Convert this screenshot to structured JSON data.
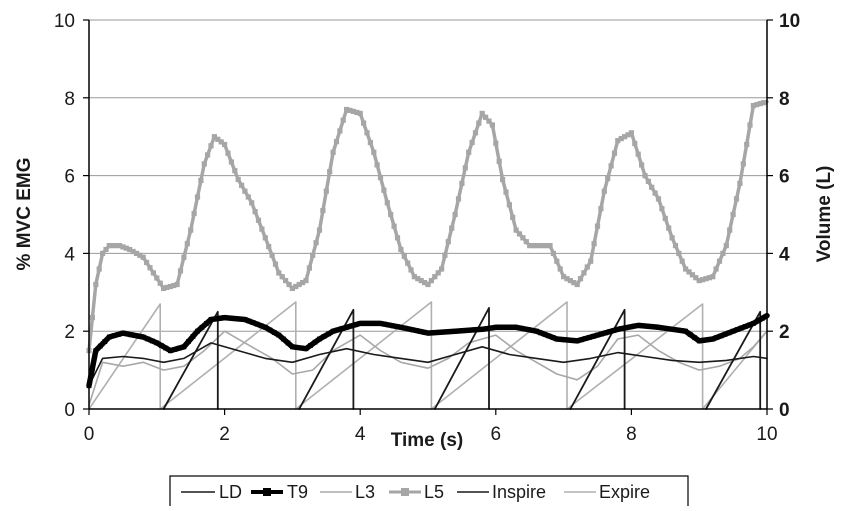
{
  "chart_data": {
    "type": "line",
    "title": "",
    "xlabel": "Time (s)",
    "ylabel_left": "% MVC EMG",
    "ylabel_right": "Volume (L)",
    "xlim": [
      0,
      10
    ],
    "ylim_left": [
      0,
      10
    ],
    "ylim_right": [
      0,
      10
    ],
    "x_ticks": [
      "0",
      "2",
      "4",
      "6",
      "8",
      "10"
    ],
    "y_ticks_left": [
      "0",
      "2",
      "4",
      "6",
      "8",
      "10"
    ],
    "y_ticks_right": [
      "0",
      "2",
      "4",
      "6",
      "8",
      "10"
    ],
    "grid": "horizontal",
    "legend_position": "bottom",
    "legend": [
      "LD",
      "T9",
      "L3",
      "L5",
      "Inspire",
      "Expire"
    ],
    "series": [
      {
        "name": "LD",
        "axis": "left",
        "color": "#1a1a1a",
        "x": [
          0,
          0.2,
          0.5,
          0.8,
          1.1,
          1.4,
          1.8,
          2.2,
          2.6,
          3.0,
          3.4,
          3.8,
          4.2,
          4.6,
          5.0,
          5.4,
          5.8,
          6.2,
          6.6,
          7.0,
          7.4,
          7.8,
          8.2,
          8.6,
          9.0,
          9.4,
          9.8,
          10.0
        ],
        "values": [
          0.6,
          1.3,
          1.35,
          1.3,
          1.2,
          1.3,
          1.7,
          1.5,
          1.3,
          1.2,
          1.4,
          1.55,
          1.4,
          1.3,
          1.2,
          1.4,
          1.6,
          1.4,
          1.3,
          1.2,
          1.3,
          1.45,
          1.35,
          1.25,
          1.2,
          1.25,
          1.35,
          1.3
        ]
      },
      {
        "name": "T9",
        "axis": "left",
        "color": "#000000",
        "x": [
          0,
          0.1,
          0.3,
          0.5,
          0.8,
          1.0,
          1.2,
          1.4,
          1.6,
          1.8,
          2.0,
          2.3,
          2.6,
          2.8,
          3.0,
          3.2,
          3.4,
          3.6,
          3.8,
          4.0,
          4.3,
          4.6,
          5.0,
          5.4,
          5.8,
          6.0,
          6.3,
          6.6,
          6.9,
          7.2,
          7.5,
          7.8,
          8.1,
          8.4,
          8.8,
          9.0,
          9.2,
          9.5,
          9.8,
          10.0
        ],
        "values": [
          0.6,
          1.5,
          1.85,
          1.95,
          1.85,
          1.7,
          1.5,
          1.6,
          2.0,
          2.3,
          2.35,
          2.3,
          2.1,
          1.9,
          1.6,
          1.55,
          1.8,
          2.0,
          2.1,
          2.2,
          2.2,
          2.1,
          1.95,
          2.0,
          2.05,
          2.1,
          2.1,
          2.0,
          1.8,
          1.75,
          1.9,
          2.05,
          2.15,
          2.1,
          2.0,
          1.75,
          1.8,
          2.0,
          2.2,
          2.4
        ]
      },
      {
        "name": "L3",
        "axis": "left",
        "color": "#a8a8a8",
        "x": [
          0,
          0.2,
          0.5,
          0.8,
          1.1,
          1.4,
          1.7,
          2.0,
          2.4,
          2.7,
          3.0,
          3.3,
          3.6,
          4.0,
          4.3,
          4.6,
          5.0,
          5.3,
          5.6,
          6.0,
          6.3,
          6.6,
          6.9,
          7.2,
          7.5,
          7.8,
          8.1,
          8.4,
          8.7,
          9.0,
          9.3,
          9.6,
          9.8,
          10.0
        ],
        "values": [
          0.1,
          1.2,
          1.1,
          1.2,
          1.0,
          1.1,
          1.5,
          2.0,
          1.6,
          1.3,
          0.9,
          1.0,
          1.5,
          1.9,
          1.5,
          1.2,
          1.05,
          1.3,
          1.7,
          1.9,
          1.5,
          1.2,
          0.9,
          0.75,
          1.1,
          1.8,
          1.9,
          1.5,
          1.2,
          1.0,
          1.1,
          1.3,
          1.6,
          2.0
        ]
      },
      {
        "name": "L5",
        "axis": "left",
        "color": "#a6a6a6",
        "x": [
          0,
          0.1,
          0.2,
          0.3,
          0.45,
          0.6,
          0.8,
          0.95,
          1.1,
          1.3,
          1.5,
          1.7,
          1.85,
          2.0,
          2.2,
          2.4,
          2.6,
          2.8,
          3.0,
          3.2,
          3.4,
          3.6,
          3.8,
          4.0,
          4.2,
          4.4,
          4.6,
          4.8,
          5.0,
          5.2,
          5.4,
          5.6,
          5.8,
          5.95,
          6.1,
          6.3,
          6.5,
          6.8,
          7.0,
          7.2,
          7.4,
          7.6,
          7.8,
          8.0,
          8.2,
          8.4,
          8.6,
          8.8,
          9.0,
          9.2,
          9.4,
          9.6,
          9.8,
          10.0
        ],
        "values": [
          1.5,
          3.2,
          4.0,
          4.2,
          4.2,
          4.1,
          3.9,
          3.5,
          3.1,
          3.2,
          4.6,
          6.3,
          7.0,
          6.8,
          5.9,
          5.3,
          4.4,
          3.5,
          3.1,
          3.3,
          4.6,
          6.6,
          7.7,
          7.6,
          6.6,
          5.3,
          4.1,
          3.4,
          3.2,
          3.6,
          5.0,
          6.6,
          7.6,
          7.3,
          5.9,
          4.6,
          4.2,
          4.2,
          3.4,
          3.2,
          3.8,
          5.6,
          6.9,
          7.1,
          6.0,
          5.4,
          4.4,
          3.6,
          3.3,
          3.4,
          4.2,
          5.8,
          7.8,
          7.9
        ]
      },
      {
        "name": "Inspire",
        "axis": "right",
        "color": "#1a1a1a",
        "x": [
          0,
          1.1,
          1.1,
          1.9,
          1.9,
          3.1,
          3.1,
          3.9,
          3.9,
          5.1,
          5.1,
          5.9,
          5.9,
          7.1,
          7.1,
          7.9,
          7.9,
          9.1,
          9.1,
          9.9,
          9.9,
          10.0
        ],
        "values": [
          null,
          null,
          0,
          2.5,
          0,
          null,
          0,
          2.55,
          0,
          null,
          0,
          2.6,
          0,
          null,
          0,
          2.55,
          0,
          null,
          0,
          2.5,
          0,
          null
        ]
      },
      {
        "name": "Expire",
        "axis": "right",
        "color": "#b0b0b0",
        "x": [
          0,
          1.05,
          1.05,
          3.05,
          3.05,
          5.05,
          5.05,
          7.05,
          7.05,
          9.05,
          9.05,
          10.0
        ],
        "values": [
          0,
          2.7,
          0,
          2.75,
          0,
          2.75,
          0,
          2.75,
          0,
          2.7,
          0,
          2.0
        ]
      }
    ]
  }
}
